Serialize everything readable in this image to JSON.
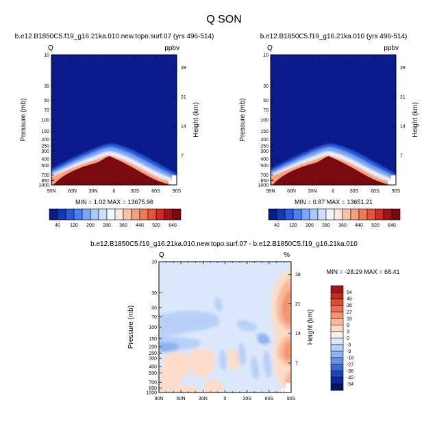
{
  "figure": {
    "title": "Q SON"
  },
  "chart_data": [
    {
      "type": "heatmap",
      "title": "b.e12.B1850C5.f19_g16.21ka.010.new.topo.surf.07 (yrs 496-514)",
      "left_label": "Q",
      "right_label": "ppbv",
      "xlabel": "",
      "ylabel": "Pressure (mb)",
      "y2label": "Height (km)",
      "x_ticks": [
        "90N",
        "60N",
        "30N",
        "0",
        "30S",
        "60S",
        "90S"
      ],
      "y_ticks": [
        "10",
        "30",
        "50",
        "70",
        "100",
        "150",
        "200",
        "250",
        "300",
        "400",
        "500",
        "700",
        "850",
        "1000"
      ],
      "y2_ticks": [
        "28",
        "21",
        "14",
        "7"
      ],
      "minmax": "MIN =   1.02   MAX = 13675.96",
      "colorbar_labels": [
        "40",
        "120",
        "200",
        "280",
        "360",
        "440",
        "520",
        "640"
      ],
      "colorbar_colors": [
        "#0a1c8c",
        "#1436b8",
        "#2a5ad8",
        "#4a7ef0",
        "#78a6f8",
        "#a6c8fb",
        "#cfe0fc",
        "#f2f6fd",
        "#fde7dc",
        "#f9c3a8",
        "#f5a07c",
        "#ef7a58",
        "#e4553c",
        "#cc2a22",
        "#a0141a",
        "#7a0a10"
      ]
    },
    {
      "type": "heatmap",
      "title": "b.e12.B1850C5.f19_g16.21ka.010 (yrs 496-514)",
      "left_label": "Q",
      "right_label": "ppbv",
      "xlabel": "",
      "ylabel": "Pressure (mb)",
      "y2label": "Height (km)",
      "x_ticks": [
        "90N",
        "60N",
        "30N",
        "0",
        "30S",
        "60S",
        "90S"
      ],
      "y_ticks": [
        "10",
        "30",
        "50",
        "70",
        "100",
        "150",
        "200",
        "250",
        "300",
        "400",
        "500",
        "700",
        "850",
        "1000"
      ],
      "y2_ticks": [
        "28",
        "21",
        "14",
        "7"
      ],
      "minmax": "MIN =   0.87   MAX = 13651.21",
      "colorbar_labels": [
        "40",
        "120",
        "200",
        "280",
        "360",
        "440",
        "520",
        "640"
      ]
    },
    {
      "type": "heatmap",
      "title": "b.e12.B1850C5.f19_g16.21ka.010.new.topo.surf.07 - b.e12.B1850C5.f19_g16.21ka.010",
      "left_label": "Q",
      "right_label": "%",
      "xlabel": "",
      "ylabel": "Pressure (mb)",
      "y2label": "Height (km)",
      "x_ticks": [
        "90N",
        "60N",
        "30N",
        "0",
        "30S",
        "60S",
        "90S"
      ],
      "y_ticks": [
        "10",
        "30",
        "50",
        "70",
        "100",
        "150",
        "200",
        "250",
        "300",
        "400",
        "500",
        "700",
        "850",
        "1000"
      ],
      "y2_ticks": [
        "28",
        "21",
        "14",
        "7"
      ],
      "minmax": "MIN = -28.29   MAX =  68.41",
      "colorbar_labels": [
        "54",
        "45",
        "36",
        "27",
        "18",
        "9",
        "3",
        "0",
        "-3",
        "-9",
        "-18",
        "-27",
        "-36",
        "-45",
        "-54"
      ],
      "colorbar_colors": [
        "#a0141a",
        "#c52a22",
        "#dc4a34",
        "#ec6e4e",
        "#f4936e",
        "#f9b898",
        "#fcdcc8",
        "#fdf0e6",
        "#dbe8fb",
        "#b8d0f8",
        "#8fb2f0",
        "#6690e4",
        "#3c68d4",
        "#1e44b8",
        "#0e2896",
        "#061470"
      ]
    }
  ]
}
